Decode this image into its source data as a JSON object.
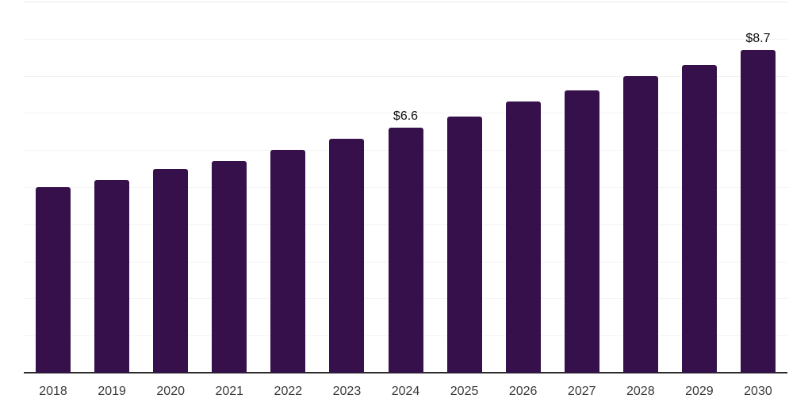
{
  "chart_data": {
    "type": "bar",
    "title": "",
    "xlabel": "",
    "ylabel": "",
    "categories": [
      "2018",
      "2019",
      "2020",
      "2021",
      "2022",
      "2023",
      "2024",
      "2025",
      "2026",
      "2027",
      "2028",
      "2029",
      "2030"
    ],
    "values": [
      5.0,
      5.2,
      5.5,
      5.7,
      6.0,
      6.3,
      6.6,
      6.9,
      7.3,
      7.6,
      8.0,
      8.3,
      8.7
    ],
    "bar_value_labels": [
      "",
      "",
      "",
      "",
      "",
      "",
      "$6.6",
      "",
      "",
      "",
      "",
      "",
      "$8.7"
    ],
    "ylim": [
      0,
      10
    ],
    "y_gridline_step": 1,
    "grid": "horizontal",
    "legend": "none",
    "colors": {
      "bar": "#36104B",
      "axis_line": "#2b2b2b",
      "gridline": "#f3f3f3",
      "top_border": "#e9e9e9",
      "tick_label": "#3a3a3a",
      "value_label": "#111111",
      "background": "#ffffff"
    }
  }
}
